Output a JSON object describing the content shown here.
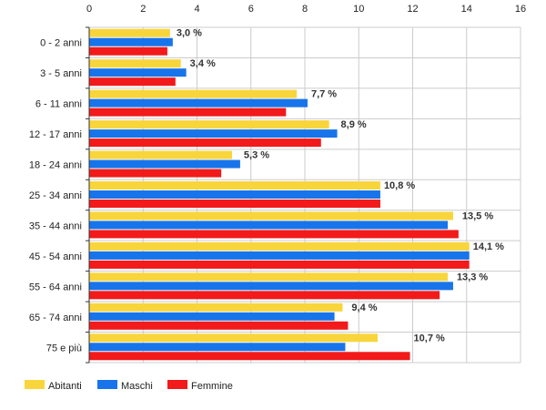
{
  "chart_data": {
    "type": "bar",
    "orientation": "horizontal",
    "categories": [
      "0 - 2 anni",
      "3 - 5 anni",
      "6 - 11 anni",
      "12 - 17 anni",
      "18 - 24 anni",
      "25 - 34 anni",
      "35 - 44 anni",
      "45 - 54 anni",
      "55 - 64 anni",
      "65 - 74 anni",
      "75 e più"
    ],
    "series": [
      {
        "name": "Abitanti",
        "color": "#f9d53c",
        "values": [
          3.0,
          3.4,
          7.7,
          8.9,
          5.3,
          10.8,
          13.5,
          14.1,
          13.3,
          9.4,
          10.7
        ]
      },
      {
        "name": "Maschi",
        "color": "#1874ea",
        "values": [
          3.1,
          3.6,
          8.1,
          9.2,
          5.6,
          10.8,
          13.3,
          14.1,
          13.5,
          9.1,
          9.5
        ]
      },
      {
        "name": "Femmine",
        "color": "#f21a1a",
        "values": [
          2.9,
          3.2,
          7.3,
          8.6,
          4.9,
          10.8,
          13.7,
          14.1,
          13.0,
          9.6,
          11.9
        ]
      }
    ],
    "data_labels": [
      "3,0 %",
      "3,4 %",
      "7,7 %",
      "8,9 %",
      "5,3 %",
      "10,8 %",
      "13,5 %",
      "14,1 %",
      "13,3 %",
      "9,4 %",
      "10,7 %"
    ],
    "x_ticks": [
      "0",
      "2",
      "4",
      "6",
      "8",
      "10",
      "12",
      "14",
      "16"
    ],
    "xlim": [
      0,
      16
    ],
    "grid": true,
    "legend_position": "bottom-left",
    "title": "",
    "xlabel": "",
    "ylabel": ""
  }
}
